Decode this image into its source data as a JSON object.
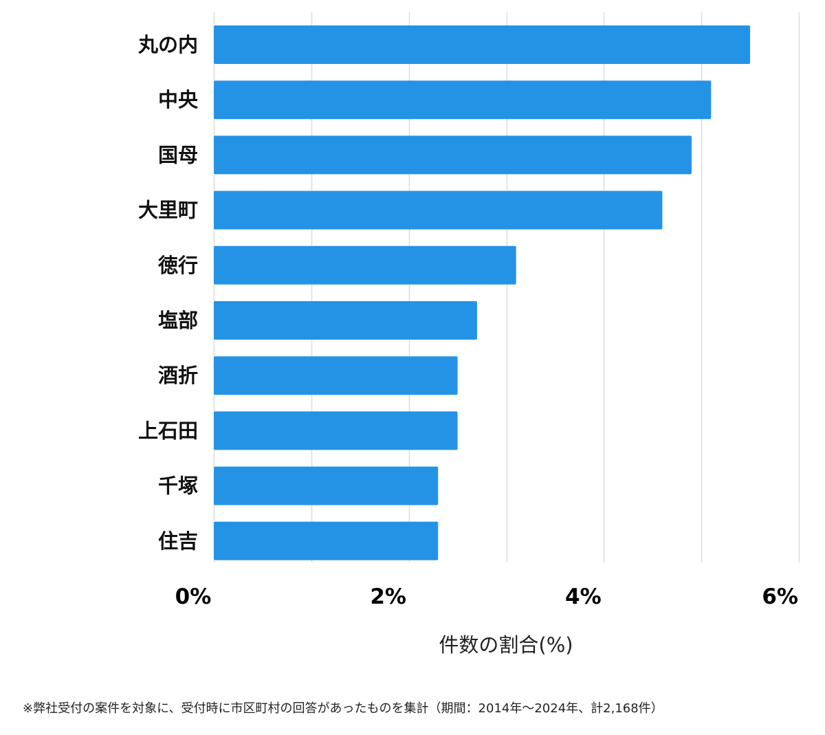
{
  "chart_data": {
    "type": "bar",
    "orientation": "horizontal",
    "categories": [
      "丸の内",
      "中央",
      "国母",
      "大里町",
      "徳行",
      "塩部",
      "酒折",
      "上石田",
      "千塚",
      "住吉"
    ],
    "values": [
      5.5,
      5.1,
      4.9,
      4.6,
      3.1,
      2.7,
      2.5,
      2.5,
      2.3,
      2.3
    ],
    "xlim": [
      0,
      6
    ],
    "x_ticks": [
      0,
      2,
      4,
      6
    ],
    "x_tick_labels": [
      "0%",
      "2%",
      "4%",
      "6%"
    ],
    "xlabel": "件数の割合(%)",
    "grid": true,
    "bar_color": "#2493e6",
    "grid_color": "#dddddd"
  },
  "footnote": "※弊社受付の案件を対象に、受付時に市区町村の回答があったものを集計（期間：2014年～2024年、計2,168件）"
}
